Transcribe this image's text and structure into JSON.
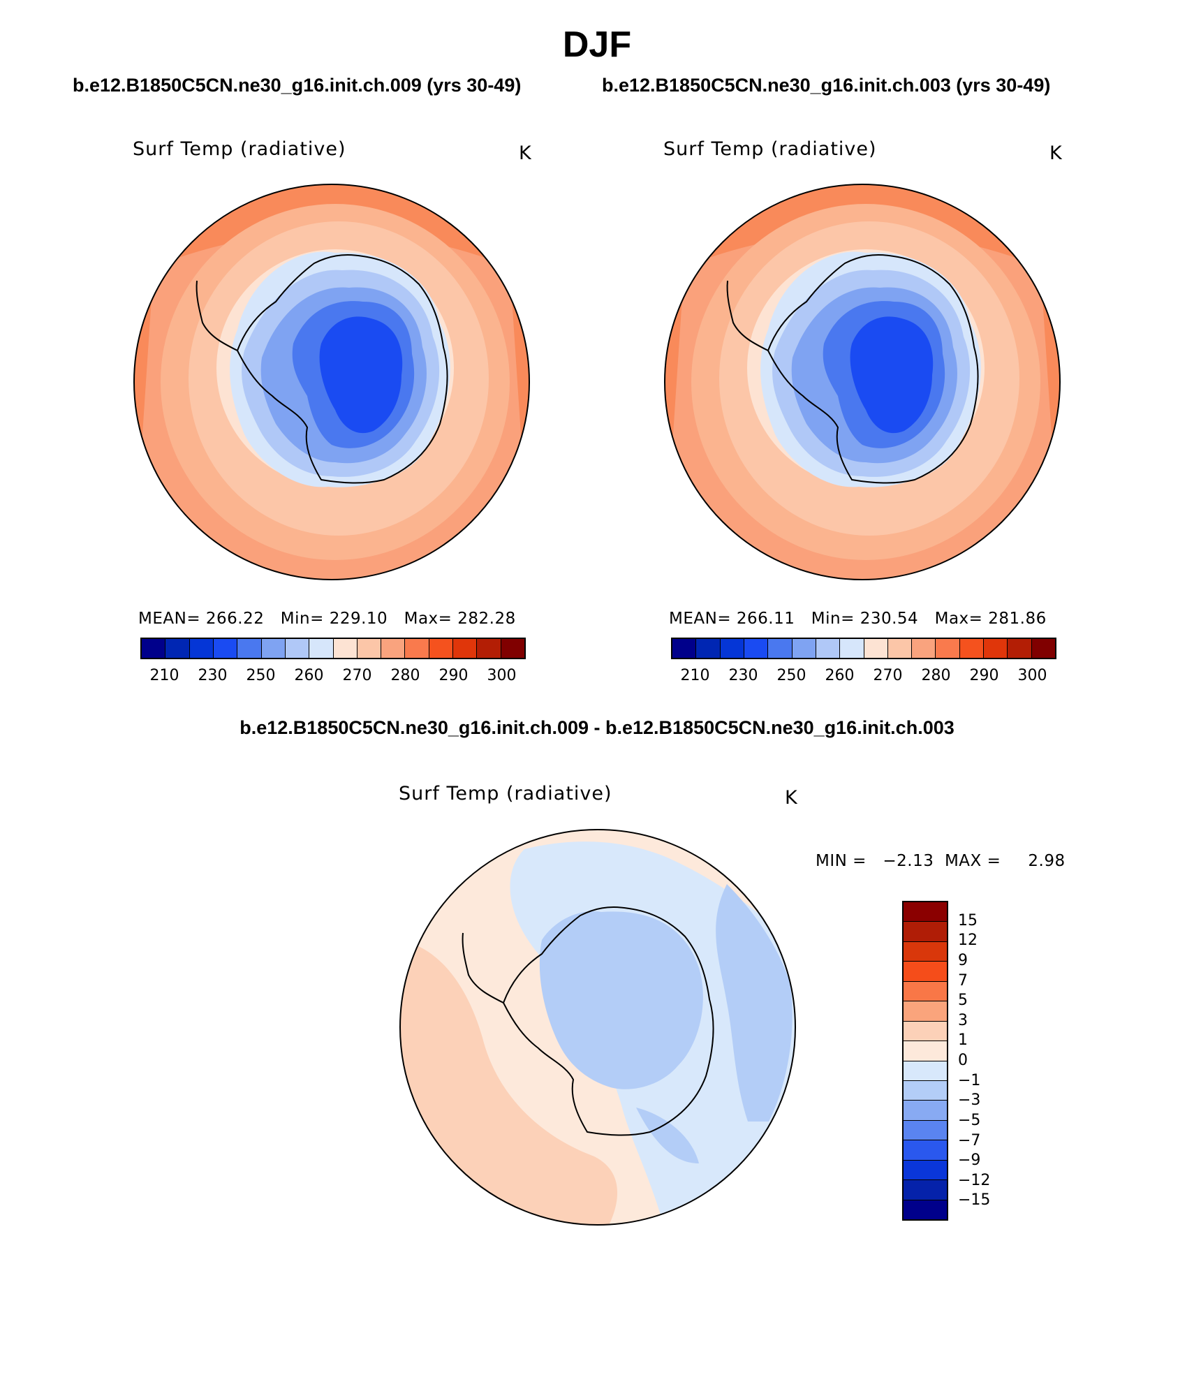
{
  "figure": {
    "season": "DJF",
    "header_case1": "b.e12.B1850C5CN.ne30_g16.init.ch.009 (yrs 30-49)",
    "header_case2": "b.e12.B1850C5CN.ne30_g16.init.ch.003 (yrs 30-49)",
    "diff_header": "b.e12.B1850C5CN.ne30_g16.init.ch.009 - b.e12.B1850C5CN.ne30_g16.init.ch.003"
  },
  "panels": {
    "left": {
      "variable": "Surf Temp (radiative)",
      "units": "K",
      "stats": "MEAN= 266.22   Min= 229.10   Max= 282.28"
    },
    "right": {
      "variable": "Surf Temp (radiative)",
      "units": "K",
      "stats": "MEAN= 266.11   Min= 230.54   Max= 281.86"
    },
    "diff": {
      "variable": "Surf Temp (radiative)",
      "units": "K",
      "stats": "MIN =   −2.13  MAX =     2.98"
    }
  },
  "abs_colorbar": {
    "labels": [
      "210",
      "230",
      "250",
      "260",
      "270",
      "280",
      "290",
      "300"
    ],
    "colors": [
      "#00008b",
      "#0026b3",
      "#0536d6",
      "#1a4bf2",
      "#4a78ef",
      "#7fa3f2",
      "#b0c8f7",
      "#d6e6fb",
      "#fde3d3",
      "#fcc6a8",
      "#f9a37e",
      "#f97a4d",
      "#f5521e",
      "#e0360a",
      "#b31e05",
      "#800000"
    ]
  },
  "diff_colorbar": {
    "labels": [
      "15",
      "12",
      "9",
      "7",
      "5",
      "3",
      "1",
      "0",
      "−1",
      "−3",
      "−5",
      "−7",
      "−9",
      "−12",
      "−15"
    ],
    "colors": [
      "#8b0000",
      "#b01d06",
      "#d9370b",
      "#f54d1a",
      "#f97747",
      "#faa47c",
      "#fcd1b8",
      "#fde9db",
      "#d8e8fb",
      "#b3cdf7",
      "#88aaf3",
      "#5a84f0",
      "#2a58ee",
      "#0a36d9",
      "#0522aa",
      "#00008b"
    ]
  }
}
